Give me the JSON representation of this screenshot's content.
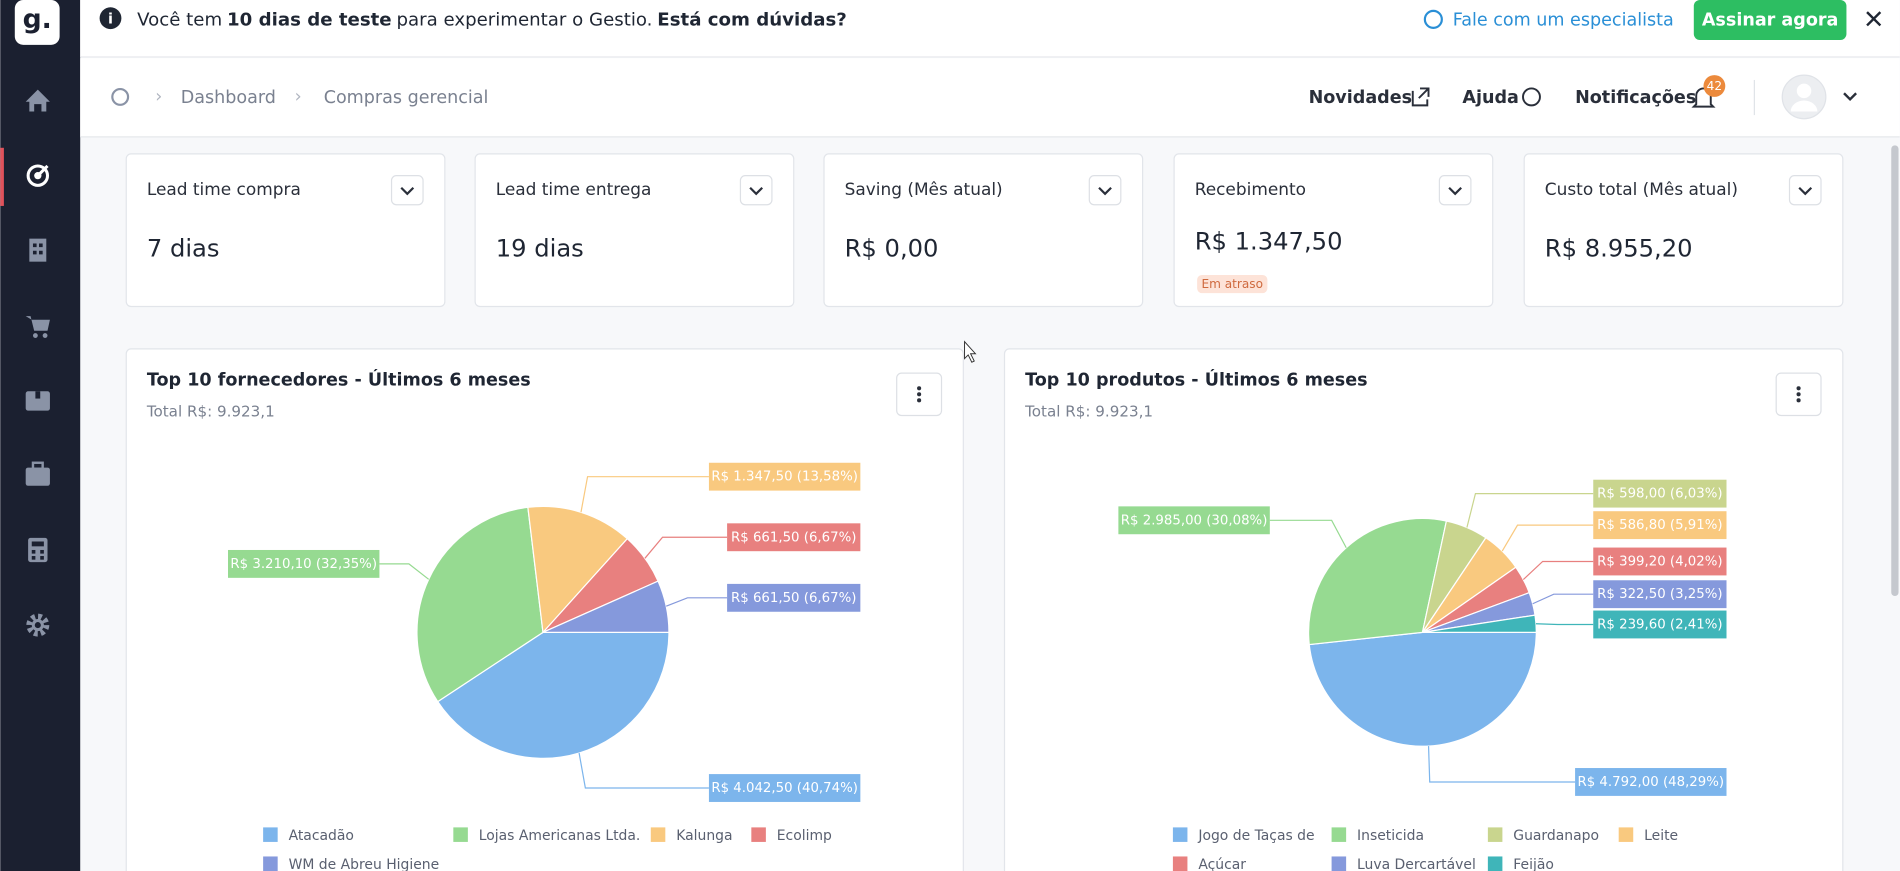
{
  "banner": {
    "text_1": "Você tem",
    "bold_1": "10 dias de teste",
    "text_2": "para experimentar o Gestio.",
    "bold_2": "Está com dúvidas?",
    "specialist_link": "Fale com um especialista",
    "subscribe_button": "Assinar agora"
  },
  "breadcrumb": [
    "Dashboard",
    "Compras gerencial"
  ],
  "header_links": {
    "news": "Novidades",
    "help": "Ajuda",
    "notifications": "Notificações",
    "notification_count": 42
  },
  "kpis": [
    {
      "title": "Lead time compra",
      "value": "7 dias"
    },
    {
      "title": "Lead time entrega",
      "value": "19 dias"
    },
    {
      "title": "Saving (Mês atual)",
      "value": "R$ 0,00"
    },
    {
      "title": "Recebimento",
      "value": "R$ 1.347,50",
      "status": "Em atraso"
    },
    {
      "title": "Custo total (Mês atual)",
      "value": "R$ 8.955,20"
    }
  ],
  "chart_data": [
    {
      "type": "pie",
      "title": "Top 10 fornecedores - Últimos 6 meses",
      "subtitle": "Total R$: 9.923,1",
      "categories": [
        "Atacadão",
        "Lojas Americanas Ltda.",
        "Kalunga",
        "Ecolimp",
        "WM de Abreu Higiene"
      ],
      "values": [
        4042.5,
        3210.1,
        1347.5,
        661.5,
        661.5
      ],
      "value_labels": [
        "R$ 4.042,50 (40,74%)",
        "R$ 3.210,10 (32,35%)",
        "R$ 1.347,50 (13,58%)",
        "R$ 661,50 (6,67%)",
        "R$ 661,50 (6,67%)"
      ],
      "colors": [
        "#7cb5ec",
        "#96da91",
        "#f9c97f",
        "#e8807f",
        "#8599dc"
      ]
    },
    {
      "type": "pie",
      "title": "Top 10 produtos - Últimos 6 meses",
      "subtitle": "Total R$: 9.923,1",
      "categories": [
        "Jogo de Taças de",
        "Inseticida",
        "Guardanapo",
        "Leite",
        "Açúcar",
        "Luva Dercartável",
        "Feijão"
      ],
      "values": [
        4792.0,
        2985.0,
        598.0,
        586.8,
        399.2,
        322.5,
        239.6
      ],
      "value_labels": [
        "R$ 4.792,00 (48,29%)",
        "R$ 2.985,00 (30,08%)",
        "R$ 598,00 (6,03%)",
        "R$ 586,80 (5,91%)",
        "R$ 399,20 (4,02%)",
        "R$ 322,50 (3,25%)",
        "R$ 239,60 (2,41%)"
      ],
      "colors": [
        "#7cb5ec",
        "#96da91",
        "#c9d58e",
        "#f9c97f",
        "#e8807f",
        "#8599dc",
        "#3fb5b9"
      ]
    }
  ]
}
